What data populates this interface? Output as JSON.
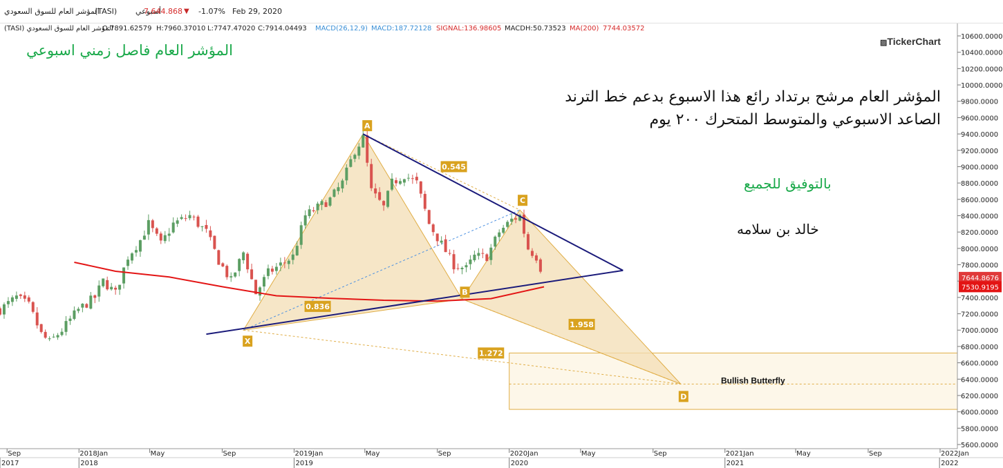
{
  "header": {
    "symbol_name": "المؤشر العام للسوق السعودي",
    "symbol_code": "(TASI)",
    "interval": "أسبوعي",
    "last_price": "7,644.868",
    "change_pct": "-1.07%",
    "date": "Feb 29, 2020"
  },
  "ohlc": {
    "name": "المؤشر العام للسوق السعودي (TASI)",
    "open": "O:7891.62579",
    "high": "H:7960.37010",
    "low": "L:7747.47020",
    "close": "C:7914.04493"
  },
  "indicators": {
    "macd_label": "MACD(26,12,9)",
    "macd_value": "MACD:187.72128",
    "signal_value": "SIGNAL:136.98605",
    "macdh_value": "MACDH:50.73523",
    "ma_label": "MA(200)",
    "ma_value": "7744.03572"
  },
  "annotations": {
    "title": "المؤشر العام فاصل زمني اسبوعي",
    "comment_line1": "المؤشر العام مرشح برتداد رائع هذا الاسبوع بدعم خط الترند",
    "comment_line2": "الصاعد الاسبوعي والمتوسط المتحرك ٢٠٠ يوم",
    "wish": "بالتوفيق للجميع",
    "author": "خالد بن سلامه",
    "logo": "TickerChart",
    "pattern_name": "Bullish Butterfly"
  },
  "colors": {
    "up": "#5c9e63",
    "down": "#d9534f",
    "ma": "#e31414",
    "trend": "#1a1a7a",
    "pattern_fill": "#f3deb4",
    "pattern_line": "#e0ad45",
    "label_bg": "#d9a21f",
    "price_tag": "#e03a3a",
    "ma_tag": "#e31414"
  },
  "chart_data": {
    "type": "candlestick",
    "interval": "weekly",
    "y_axis": {
      "ylim": [
        5550,
        10700
      ],
      "ticks": [
        "10600.0000",
        "10400.0000",
        "10200.0000",
        "10000.0000",
        "9800.0000",
        "9600.0000",
        "9400.0000",
        "9200.0000",
        "9000.0000",
        "8800.0000",
        "8600.0000",
        "8400.0000",
        "8200.0000",
        "8000.0000",
        "7800.0000",
        "7600.0000",
        "7400.0000",
        "7200.0000",
        "7000.0000",
        "6800.0000",
        "6600.0000",
        "6400.0000",
        "6200.0000",
        "6000.0000",
        "5800.0000",
        "5600.0000"
      ],
      "tick_values": [
        10600,
        10400,
        10200,
        10000,
        9800,
        9600,
        9400,
        9200,
        9000,
        8800,
        8600,
        8400,
        8200,
        8000,
        7800,
        7600,
        7400,
        7200,
        7000,
        6800,
        6600,
        6400,
        6200,
        6000,
        5800,
        5600
      ],
      "last_price_tag": "7644.8676",
      "last_price_value": 7644.8676,
      "ma_tag": "7530.9195",
      "ma_value": 7530.9195
    },
    "x_axis": {
      "start": "2017-08-20",
      "month_labels": [
        {
          "label": "Sep",
          "date": "2017-09-01"
        },
        {
          "label": "2018Jan",
          "date": "2018-01-01"
        },
        {
          "label": "May",
          "date": "2018-05-01"
        },
        {
          "label": "Sep",
          "date": "2018-09-01"
        },
        {
          "label": "2019Jan",
          "date": "2019-01-01"
        },
        {
          "label": "May",
          "date": "2019-05-01"
        },
        {
          "label": "Sep",
          "date": "2019-09-01"
        },
        {
          "label": "2020Jan",
          "date": "2020-01-01"
        },
        {
          "label": "May",
          "date": "2020-05-01"
        },
        {
          "label": "Sep",
          "date": "2020-09-01"
        },
        {
          "label": "2021Jan",
          "date": "2021-01-01"
        },
        {
          "label": "May",
          "date": "2021-05-01"
        },
        {
          "label": "Sep",
          "date": "2021-09-01"
        },
        {
          "label": "2022Jan",
          "date": "2022-01-01"
        }
      ],
      "year_labels": [
        {
          "label": "2017",
          "date": "2017-08-20"
        },
        {
          "label": "2018",
          "date": "2018-01-01"
        },
        {
          "label": "2019",
          "date": "2019-01-01"
        },
        {
          "label": "2020",
          "date": "2020-01-01"
        },
        {
          "label": "2021",
          "date": "2021-01-01"
        },
        {
          "label": "2022",
          "date": "2021-12-31"
        }
      ]
    },
    "close_path": [
      [
        "2017-08-20",
        7250
      ],
      [
        "2017-09-17",
        7400
      ],
      [
        "2017-10-08",
        7300
      ],
      [
        "2017-10-29",
        6950
      ],
      [
        "2017-11-12",
        6850
      ],
      [
        "2017-12-03",
        7000
      ],
      [
        "2017-12-31",
        7250
      ],
      [
        "2018-01-28",
        7400
      ],
      [
        "2018-02-11",
        7600
      ],
      [
        "2018-03-04",
        7450
      ],
      [
        "2018-03-25",
        7900
      ],
      [
        "2018-04-15",
        8100
      ],
      [
        "2018-04-29",
        8300
      ],
      [
        "2018-05-20",
        8050
      ],
      [
        "2018-06-10",
        8300
      ],
      [
        "2018-07-08",
        8400
      ],
      [
        "2018-08-05",
        8200
      ],
      [
        "2018-08-26",
        7850
      ],
      [
        "2018-09-16",
        7600
      ],
      [
        "2018-10-07",
        7950
      ],
      [
        "2018-10-28",
        7450
      ],
      [
        "2018-11-18",
        7700
      ],
      [
        "2018-12-09",
        7800
      ],
      [
        "2018-12-30",
        7900
      ],
      [
        "2019-01-20",
        8400
      ],
      [
        "2019-02-10",
        8500
      ],
      [
        "2019-03-03",
        8600
      ],
      [
        "2019-03-24",
        8800
      ],
      [
        "2019-04-14",
        9200
      ],
      [
        "2019-04-28",
        9350
      ],
      [
        "2019-05-12",
        8700
      ],
      [
        "2019-06-02",
        8500
      ],
      [
        "2019-06-16",
        8800
      ],
      [
        "2019-07-07",
        8900
      ],
      [
        "2019-07-28",
        8800
      ],
      [
        "2019-08-18",
        8300
      ],
      [
        "2019-09-08",
        8050
      ],
      [
        "2019-09-29",
        7800
      ],
      [
        "2019-10-20",
        7750
      ],
      [
        "2019-11-03",
        7900
      ],
      [
        "2019-11-24",
        7900
      ],
      [
        "2019-12-15",
        8200
      ],
      [
        "2020-01-05",
        8350
      ],
      [
        "2020-01-19",
        8400
      ],
      [
        "2020-02-02",
        8000
      ],
      [
        "2020-02-16",
        7900
      ],
      [
        "2020-02-29",
        7645
      ]
    ],
    "ma200": [
      [
        "2017-12-24",
        7830
      ],
      [
        "2018-03-04",
        7720
      ],
      [
        "2018-06-03",
        7650
      ],
      [
        "2018-09-02",
        7530
      ],
      [
        "2018-12-02",
        7420
      ],
      [
        "2019-03-03",
        7390
      ],
      [
        "2019-06-02",
        7365
      ],
      [
        "2019-09-01",
        7355
      ],
      [
        "2019-12-01",
        7385
      ],
      [
        "2020-02-29",
        7530
      ]
    ],
    "harmonic_pattern": {
      "name": "Bullish Butterfly",
      "points": [
        {
          "label": "X",
          "date": "2018-10-07",
          "value": 7000
        },
        {
          "label": "A",
          "date": "2019-04-28",
          "value": 9400
        },
        {
          "label": "B",
          "date": "2019-10-13",
          "value": 7380
        },
        {
          "label": "C",
          "date": "2020-01-19",
          "value": 8470
        },
        {
          "label": "D",
          "date": "2020-10-18",
          "value": 6340
        }
      ],
      "ratios": [
        {
          "label": "0.836",
          "date": "2019-02-10",
          "value": 7290
        },
        {
          "label": "0.545",
          "date": "2019-09-29",
          "value": 9000
        },
        {
          "label": "1.958",
          "date": "2020-05-03",
          "value": 7070
        },
        {
          "label": "1.272",
          "date": "2019-12-01",
          "value": 6720
        }
      ],
      "target_zone": {
        "from": "2020-01-01",
        "to": "2022-01-31",
        "low": 6030,
        "high": 6720
      }
    },
    "trend_lines": [
      {
        "from": {
          "date": "2018-08-05",
          "value": 6950
        },
        "to": {
          "date": "2020-07-12",
          "value": 7730
        }
      },
      {
        "from": {
          "date": "2019-04-28",
          "value": 9400
        },
        "to": {
          "date": "2020-07-12",
          "value": 7730
        }
      }
    ]
  }
}
